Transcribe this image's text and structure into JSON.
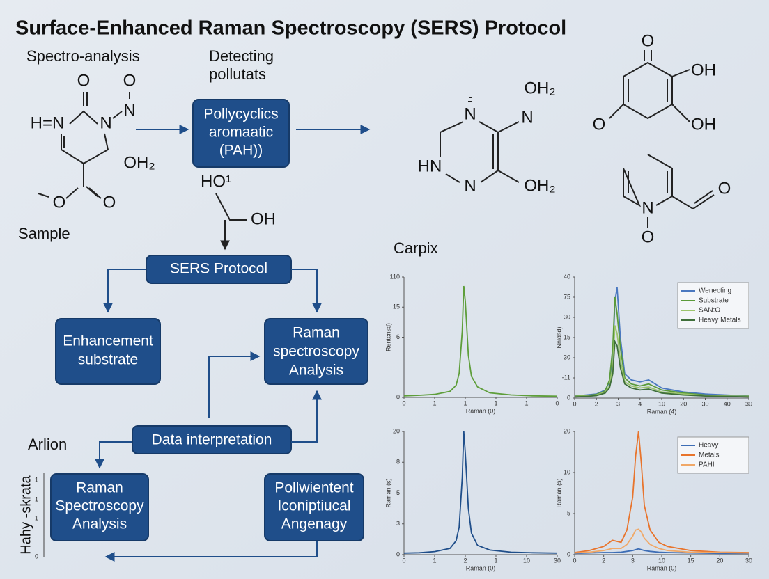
{
  "title": "Surface-Enhanced Raman Spectroscopy (SERS) Protocol",
  "labels": {
    "spectro": "Spectro-analysis",
    "detecting": [
      "Detecting",
      "pollutats"
    ],
    "sample": "Sample",
    "arlion": "Arlion",
    "carpix": "Carpix"
  },
  "molecules": [
    {
      "atoms": [
        "O",
        "O",
        "H=N",
        "N",
        "N",
        "OH₂",
        "O",
        "O"
      ]
    },
    {
      "atoms": [
        "N",
        "OH₂",
        "N",
        "HN",
        "N",
        "OH₂"
      ]
    },
    {
      "atoms": [
        "O",
        "OH",
        "OH",
        "O"
      ]
    },
    {
      "atoms": [
        "N",
        "O",
        "O"
      ]
    }
  ],
  "flow": {
    "pah": [
      "Pollycyclics",
      "aromaatic",
      "(PAH))"
    ],
    "pah_hydroxyl": [
      "HO¹",
      "OH"
    ],
    "sers": "SERS Protocol",
    "enhancement": [
      "Enhancement",
      "substrate"
    ],
    "raman_top": [
      "Raman",
      "spectroscopy",
      "Analysis"
    ],
    "data_interp": "Data interpretation",
    "raman_bottom": [
      "Raman",
      "Spectroscopy",
      "Analysis"
    ],
    "pollwientent": [
      "Pollwientent",
      "Iconiptiucal",
      "Angenagy"
    ]
  },
  "side_axis": {
    "label": "Hahy -skrata",
    "ticks": [
      "1",
      "1",
      "1",
      "0"
    ]
  },
  "chart_data": [
    {
      "type": "line",
      "xlabel": "Raman (0)",
      "ylabel": "Rentcnsd)",
      "xlim": [
        0,
        5
      ],
      "ylim": [
        0,
        4
      ],
      "xticks": [
        0,
        {
          "value": 1,
          "label": "1"
        },
        {
          "value": 2,
          "label": "1"
        },
        {
          "value": 3,
          "label": "1"
        },
        {
          "value": 4,
          "label": "1"
        },
        {
          "value": 5,
          "label": "0"
        }
      ],
      "yticks": [
        {
          "value": 4,
          "label": "110"
        },
        {
          "value": 3,
          "label": "15"
        },
        {
          "value": 2,
          "label": "6"
        },
        0
      ],
      "x": [
        0,
        0.5,
        1,
        1.5,
        1.7,
        1.8,
        1.9,
        1.95,
        2.0,
        2.1,
        2.2,
        2.4,
        2.8,
        3.5,
        4.2,
        5
      ],
      "series": [
        {
          "color": "#5e9e3a",
          "values": [
            0.05,
            0.07,
            0.1,
            0.2,
            0.4,
            0.8,
            2.2,
            3.7,
            3.2,
            1.4,
            0.7,
            0.35,
            0.15,
            0.08,
            0.05,
            0.04
          ]
        }
      ]
    },
    {
      "type": "line",
      "xlabel": "Raman (4)",
      "ylabel": "Nnldsd)",
      "legend": "upper right",
      "xlim": [
        0,
        8
      ],
      "ylim": [
        0,
        6
      ],
      "xticks": [
        0,
        {
          "value": 1,
          "label": "2"
        },
        {
          "value": 2,
          "label": "3"
        },
        {
          "value": 3,
          "label": "4"
        },
        {
          "value": 4,
          "label": "10"
        },
        {
          "value": 5,
          "label": "20"
        },
        {
          "value": 6,
          "label": "30"
        },
        {
          "value": 7,
          "label": "40"
        },
        {
          "value": 8,
          "label": "30"
        }
      ],
      "yticks": [
        {
          "value": 6,
          "label": "40"
        },
        {
          "value": 5,
          "label": "75"
        },
        {
          "value": 4,
          "label": "30"
        },
        {
          "value": 3,
          "label": "15"
        },
        {
          "value": 2,
          "label": "30"
        },
        {
          "value": 1,
          "label": "-11"
        },
        0
      ],
      "x": [
        0,
        0.5,
        1,
        1.4,
        1.6,
        1.75,
        1.85,
        1.95,
        2.1,
        2.3,
        2.6,
        3,
        3.4,
        4,
        5,
        6,
        7,
        8
      ],
      "series": [
        {
          "name": "Wenecting",
          "color": "#4a78c0",
          "values": [
            0.1,
            0.15,
            0.2,
            0.4,
            0.8,
            2,
            4.8,
            5.5,
            3,
            1.2,
            0.9,
            0.8,
            0.9,
            0.5,
            0.3,
            0.2,
            0.15,
            0.1
          ]
        },
        {
          "name": "Substrate",
          "color": "#5a9a3a",
          "values": [
            0.1,
            0.12,
            0.18,
            0.35,
            0.9,
            2.5,
            5,
            4.2,
            2.5,
            1,
            0.7,
            0.6,
            0.7,
            0.4,
            0.25,
            0.15,
            0.1,
            0.1
          ]
        },
        {
          "name": "SAN:O",
          "color": "#9cc46c",
          "values": [
            0.08,
            0.1,
            0.15,
            0.3,
            0.6,
            1.6,
            3.6,
            3.2,
            1.9,
            0.8,
            0.6,
            0.5,
            0.55,
            0.3,
            0.2,
            0.12,
            0.1,
            0.08
          ]
        },
        {
          "name": "Heavy Metals",
          "color": "#3f6f3a",
          "values": [
            0.06,
            0.08,
            0.12,
            0.25,
            0.5,
            1.2,
            2.8,
            2.6,
            1.5,
            0.7,
            0.5,
            0.4,
            0.45,
            0.25,
            0.15,
            0.1,
            0.08,
            0.06
          ]
        }
      ]
    },
    {
      "type": "line",
      "xlabel": "Raman (0)",
      "ylabel": "Raman (s)",
      "xlim": [
        0,
        5
      ],
      "ylim": [
        0,
        4
      ],
      "xticks": [
        0,
        {
          "value": 1,
          "label": "1"
        },
        {
          "value": 2,
          "label": "2"
        },
        {
          "value": 3,
          "label": "1"
        },
        {
          "value": 4,
          "label": "10"
        },
        {
          "value": 5,
          "label": "30"
        }
      ],
      "yticks": [
        {
          "value": 4,
          "label": "20"
        },
        {
          "value": 3,
          "label": "8"
        },
        {
          "value": 2,
          "label": "5"
        },
        {
          "value": 1,
          "label": "3"
        },
        0
      ],
      "x": [
        0,
        0.5,
        1,
        1.5,
        1.7,
        1.8,
        1.9,
        1.95,
        2.0,
        2.1,
        2.2,
        2.4,
        2.8,
        3.5,
        4.2,
        5
      ],
      "series": [
        {
          "color": "#1f4e8a",
          "values": [
            0.05,
            0.06,
            0.1,
            0.2,
            0.45,
            0.9,
            2.5,
            4,
            3.3,
            1.5,
            0.7,
            0.3,
            0.15,
            0.08,
            0.06,
            0.05
          ]
        }
      ]
    },
    {
      "type": "line",
      "xlabel": "Raman (0)",
      "ylabel": "Raman (s)",
      "legend": "upper right",
      "xlim": [
        0,
        6
      ],
      "ylim": [
        0,
        3
      ],
      "xticks": [
        0,
        {
          "value": 1,
          "label": "2"
        },
        {
          "value": 2,
          "label": "3"
        },
        {
          "value": 3,
          "label": "10"
        },
        {
          "value": 4,
          "label": "15"
        },
        {
          "value": 5,
          "label": "20"
        },
        {
          "value": 6,
          "label": "30"
        }
      ],
      "yticks": [
        {
          "value": 3,
          "label": "20"
        },
        {
          "value": 2,
          "label": "10"
        },
        {
          "value": 1,
          "label": "5"
        },
        0
      ],
      "x": [
        0,
        0.5,
        1,
        1.3,
        1.6,
        1.8,
        2,
        2.1,
        2.2,
        2.3,
        2.4,
        2.6,
        2.9,
        3.2,
        4,
        5,
        6
      ],
      "series": [
        {
          "name": "Heavy",
          "color": "#3d6db5",
          "values": [
            0.03,
            0.04,
            0.05,
            0.05,
            0.06,
            0.08,
            0.1,
            0.12,
            0.14,
            0.12,
            0.1,
            0.08,
            0.06,
            0.05,
            0.04,
            0.03,
            0.03
          ]
        },
        {
          "name": "Metals",
          "color": "#e8742c",
          "values": [
            0.05,
            0.1,
            0.2,
            0.35,
            0.3,
            0.6,
            1.4,
            2.4,
            3,
            2.2,
            1.2,
            0.6,
            0.3,
            0.2,
            0.1,
            0.06,
            0.05
          ]
        },
        {
          "name": "PAHI",
          "color": "#f0a868",
          "values": [
            0.04,
            0.06,
            0.1,
            0.15,
            0.15,
            0.25,
            0.45,
            0.6,
            0.62,
            0.55,
            0.4,
            0.25,
            0.15,
            0.1,
            0.06,
            0.05,
            0.04
          ]
        }
      ]
    }
  ]
}
